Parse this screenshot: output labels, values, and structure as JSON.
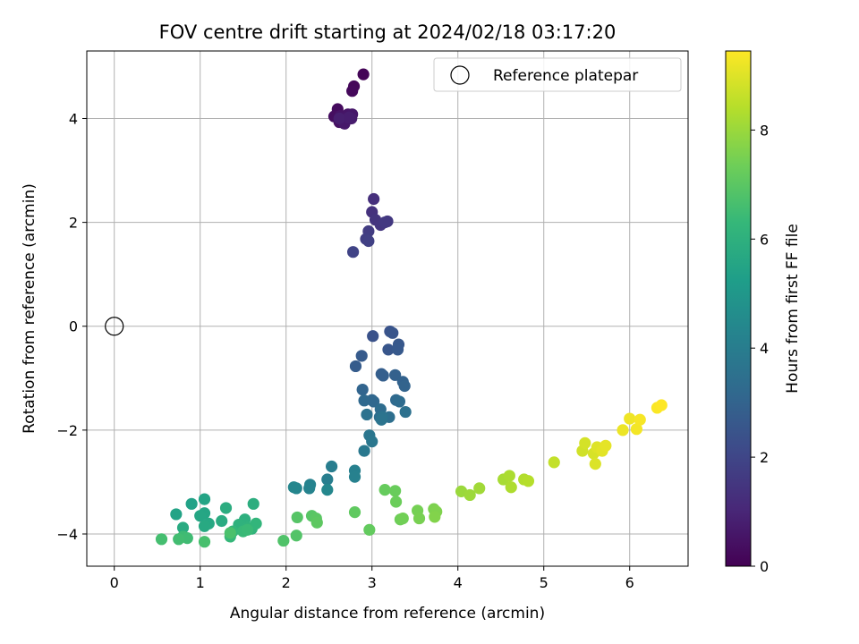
{
  "chart_data": {
    "type": "scatter",
    "title": "FOV centre drift starting at 2024/02/18 03:17:20",
    "xlabel": "Angular distance from reference (arcmin)",
    "ylabel": "Rotation from reference (arcmin)",
    "xlim": [
      -0.32,
      6.68
    ],
    "ylim": [
      -4.62,
      5.3
    ],
    "xticks": [
      0,
      1,
      2,
      3,
      4,
      5,
      6
    ],
    "yticks": [
      -4,
      -2,
      0,
      2,
      4
    ],
    "grid": true,
    "legend": {
      "position": "upper right",
      "entries": [
        "Reference platepar"
      ]
    },
    "reference_point": {
      "x": 0,
      "y": 0,
      "label": "Reference platepar"
    },
    "colorbar": {
      "label": "Hours from first FF file",
      "range": [
        0,
        9.45
      ],
      "ticks": [
        0,
        2,
        4,
        6,
        8
      ],
      "colormap": "viridis",
      "colors": [
        "#440154",
        "#482878",
        "#3e4989",
        "#31688e",
        "#26828e",
        "#1f9e89",
        "#35b779",
        "#6ece58",
        "#b5de2b",
        "#fde725"
      ]
    },
    "series": [
      {
        "x": [
          2.9,
          2.79,
          2.77,
          2.6,
          2.56,
          2.62,
          2.68,
          2.63,
          2.72,
          2.77,
          2.68,
          2.76,
          2.73,
          2.62
        ],
        "y": [
          4.85,
          4.62,
          4.53,
          4.18,
          4.04,
          3.93,
          3.98,
          4.05,
          4.08,
          4.08,
          3.9,
          4.0,
          4.02,
          4.0
        ],
        "hours": [
          0.1,
          0.15,
          0.2,
          0.28,
          0.35,
          0.4,
          0.45,
          0.5,
          0.55,
          0.6,
          0.65,
          0.7,
          0.75,
          0.8
        ]
      },
      {
        "x": [
          3.02,
          3.0,
          3.04,
          3.1,
          3.18,
          3.15,
          2.96,
          2.93,
          2.96,
          2.78
        ],
        "y": [
          2.45,
          2.2,
          2.05,
          1.95,
          2.02,
          2.0,
          1.83,
          1.68,
          1.64,
          1.43
        ],
        "hours": [
          1.3,
          1.38,
          1.45,
          1.5,
          1.55,
          1.6,
          1.68,
          1.75,
          1.8,
          1.9
        ]
      },
      {
        "x": [
          3.01,
          3.21,
          3.24,
          3.19,
          3.31,
          3.3,
          2.88,
          2.81,
          3.11,
          3.13,
          3.27,
          3.36,
          3.38,
          2.89,
          3.0,
          3.02,
          2.91,
          3.28,
          3.32,
          3.1,
          3.09,
          3.2,
          3.39,
          2.94,
          3.12,
          3.11,
          2.97,
          3.0,
          2.91
        ],
        "y": [
          -0.19,
          -0.1,
          -0.13,
          -0.45,
          -0.35,
          -0.45,
          -0.57,
          -0.77,
          -0.92,
          -0.95,
          -0.94,
          -1.07,
          -1.15,
          -1.22,
          -1.42,
          -1.45,
          -1.43,
          -1.42,
          -1.45,
          -1.6,
          -1.75,
          -1.75,
          -1.65,
          -1.7,
          -1.75,
          -1.8,
          -2.1,
          -2.22,
          -2.4
        ],
        "hours": [
          2.4,
          2.45,
          2.5,
          2.55,
          2.6,
          2.65,
          2.7,
          2.75,
          2.8,
          2.85,
          2.9,
          2.95,
          3.0,
          3.05,
          3.1,
          3.15,
          3.2,
          3.25,
          3.3,
          3.35,
          3.4,
          3.45,
          3.5,
          3.55,
          3.6,
          3.65,
          3.7,
          3.75,
          3.8
        ]
      },
      {
        "x": [
          2.53,
          2.48,
          2.8,
          2.8,
          2.28,
          2.27,
          2.12,
          2.09,
          2.48,
          0.9,
          0.72,
          1.05,
          1.05,
          1.0,
          1.1,
          1.05,
          0.8,
          1.25,
          1.3,
          1.62,
          1.52,
          1.5,
          1.45,
          1.55,
          1.6,
          1.65,
          1.38,
          1.35,
          1.5,
          1.55,
          0.8,
          0.85,
          0.75,
          0.55,
          1.05,
          1.35
        ],
        "y": [
          -2.7,
          -2.95,
          -2.78,
          -2.9,
          -3.05,
          -3.12,
          -3.12,
          -3.1,
          -3.15,
          -3.42,
          -3.62,
          -3.33,
          -3.6,
          -3.65,
          -3.8,
          -3.85,
          -3.88,
          -3.75,
          -3.5,
          -3.42,
          -3.72,
          -3.8,
          -3.82,
          -3.88,
          -3.9,
          -3.8,
          -3.95,
          -4.05,
          -3.95,
          -3.92,
          -4.05,
          -4.08,
          -4.1,
          -4.1,
          -4.15,
          -3.98
        ],
        "hours": [
          4.0,
          4.05,
          4.1,
          4.15,
          4.2,
          4.25,
          4.3,
          4.35,
          4.4,
          5.4,
          5.45,
          5.5,
          5.55,
          5.6,
          5.65,
          5.7,
          5.75,
          5.8,
          5.85,
          5.9,
          5.95,
          6.0,
          6.05,
          6.1,
          6.15,
          6.2,
          6.25,
          6.3,
          6.35,
          6.4,
          6.45,
          6.5,
          6.55,
          6.6,
          6.65,
          6.7
        ]
      },
      {
        "x": [
          1.97,
          2.12,
          2.13,
          2.3,
          2.35,
          2.36,
          2.8,
          2.97,
          3.15,
          3.27,
          3.28,
          3.33,
          3.36,
          3.53,
          3.55,
          3.72,
          3.75,
          3.73
        ],
        "y": [
          -4.13,
          -4.03,
          -3.68,
          -3.65,
          -3.7,
          -3.78,
          -3.58,
          -3.92,
          -3.15,
          -3.17,
          -3.38,
          -3.72,
          -3.7,
          -3.55,
          -3.7,
          -3.52,
          -3.57,
          -3.67
        ],
        "hours": [
          6.8,
          6.85,
          6.9,
          6.95,
          7.0,
          7.05,
          7.1,
          7.15,
          7.2,
          7.25,
          7.3,
          7.35,
          7.4,
          7.45,
          7.5,
          7.55,
          7.6,
          7.65
        ]
      },
      {
        "x": [
          4.04,
          4.14,
          4.25,
          4.53,
          4.6,
          4.62,
          4.77,
          4.82,
          5.12,
          5.45,
          5.48,
          5.58,
          5.6,
          5.62,
          5.68,
          5.72,
          5.92,
          6.0,
          6.08,
          6.12,
          6.32,
          6.37
        ],
        "y": [
          -3.18,
          -3.25,
          -3.12,
          -2.95,
          -2.88,
          -3.1,
          -2.95,
          -2.98,
          -2.62,
          -2.4,
          -2.25,
          -2.45,
          -2.65,
          -2.33,
          -2.4,
          -2.3,
          -2.0,
          -1.78,
          -1.98,
          -1.8,
          -1.57,
          -1.52
        ],
        "hours": [
          8.0,
          8.05,
          8.1,
          8.2,
          8.25,
          8.3,
          8.35,
          8.4,
          8.6,
          8.8,
          8.85,
          8.9,
          8.95,
          9.0,
          9.05,
          9.1,
          9.2,
          9.25,
          9.3,
          9.35,
          9.4,
          9.45
        ]
      }
    ]
  }
}
